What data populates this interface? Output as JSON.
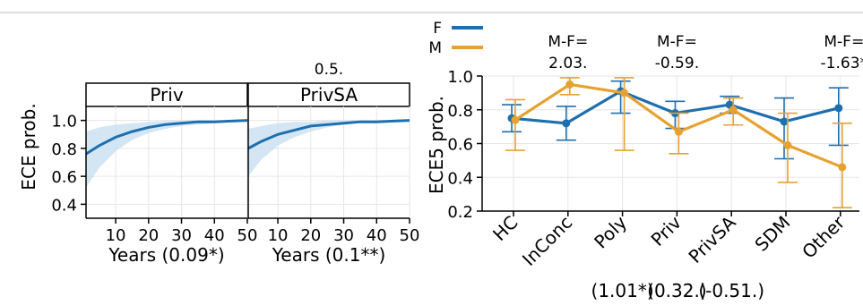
{
  "colors": {
    "F": "#1f6fae",
    "M": "#e6a231",
    "band": "#c6ddf0",
    "grid": "#e6e6e6",
    "strip_bg": "#ffffff"
  },
  "chart_data": [
    {
      "type": "line",
      "facets": [
        "Priv",
        "PrivSA"
      ],
      "facet_notes": [
        "",
        "0.5."
      ],
      "ylabel": "ECE prob.",
      "xlabels": [
        "Years (0.09*)",
        "Years (0.1**)"
      ],
      "xlim": [
        1,
        50
      ],
      "ylim": [
        0.3,
        1.1
      ],
      "xticks": [
        10,
        20,
        30,
        40,
        50
      ],
      "yticks": [
        0.4,
        0.6,
        0.8,
        1.0
      ],
      "ytick_labels": [
        "0.4",
        "0.6",
        "0.8",
        "1.0"
      ],
      "xtick_labels": [
        "10",
        "20",
        "30",
        "40",
        "50"
      ],
      "grid": true,
      "series": [
        {
          "facet": "Priv",
          "x": [
            1,
            5,
            10,
            15,
            20,
            25,
            30,
            35,
            40,
            45,
            50
          ],
          "y": [
            0.76,
            0.82,
            0.88,
            0.92,
            0.95,
            0.97,
            0.98,
            0.99,
            0.99,
            0.995,
            1.0
          ],
          "lower": [
            0.52,
            0.66,
            0.78,
            0.86,
            0.91,
            0.94,
            0.96,
            0.97,
            0.98,
            0.99,
            0.99
          ],
          "upper": [
            0.92,
            0.95,
            0.97,
            0.98,
            0.99,
            0.995,
            1.0,
            1.0,
            1.0,
            1.0,
            1.0
          ]
        },
        {
          "facet": "PrivSA",
          "x": [
            1,
            5,
            10,
            15,
            20,
            25,
            30,
            35,
            40,
            45,
            50
          ],
          "y": [
            0.8,
            0.85,
            0.9,
            0.93,
            0.96,
            0.97,
            0.98,
            0.99,
            0.99,
            0.995,
            1.0
          ],
          "lower": [
            0.6,
            0.72,
            0.82,
            0.88,
            0.92,
            0.95,
            0.97,
            0.98,
            0.98,
            0.99,
            0.99
          ],
          "upper": [
            0.94,
            0.96,
            0.98,
            0.99,
            0.99,
            1.0,
            1.0,
            1.0,
            1.0,
            1.0,
            1.0
          ]
        }
      ]
    },
    {
      "type": "line",
      "categories": [
        "HC",
        "InConc",
        "Poly",
        "Priv",
        "PrivSA",
        "SDM",
        "Other"
      ],
      "ylabel": "ECE5 prob.",
      "ylim": [
        0.2,
        1.0
      ],
      "yticks": [
        0.2,
        0.4,
        0.6,
        0.8,
        1.0
      ],
      "ytick_labels": [
        "0.2",
        "0.4",
        "0.6",
        "0.8",
        "1.0"
      ],
      "grid": true,
      "legend": {
        "placement": "top-left",
        "entries": [
          "F",
          "M"
        ]
      },
      "annotations_top": [
        {
          "category": "InConc",
          "lines": [
            "M-F=",
            "2.03."
          ]
        },
        {
          "category": "Priv",
          "lines": [
            "M-F=",
            "-0.59."
          ]
        },
        {
          "category": "Other",
          "lines": [
            "M-F=",
            "-1.63*"
          ]
        }
      ],
      "annotations_bottom": [
        {
          "category": "Poly",
          "text": "(1.01*)"
        },
        {
          "category": "Priv",
          "text": "(0.32.)"
        },
        {
          "category": "PrivSA",
          "text": "(-0.51.)"
        }
      ],
      "series": [
        {
          "name": "F",
          "values": [
            0.75,
            0.72,
            0.91,
            0.78,
            0.83,
            0.73,
            0.81
          ],
          "lower": [
            0.67,
            0.62,
            0.78,
            0.69,
            0.78,
            0.51,
            0.59
          ],
          "upper": [
            0.83,
            0.82,
            0.97,
            0.85,
            0.88,
            0.87,
            0.93
          ]
        },
        {
          "name": "M",
          "values": [
            0.74,
            0.95,
            0.9,
            0.67,
            0.8,
            0.59,
            0.46
          ],
          "lower": [
            0.56,
            0.89,
            0.56,
            0.54,
            0.71,
            0.37,
            0.22
          ],
          "upper": [
            0.86,
            0.99,
            0.99,
            0.78,
            0.87,
            0.78,
            0.72
          ]
        }
      ]
    }
  ]
}
